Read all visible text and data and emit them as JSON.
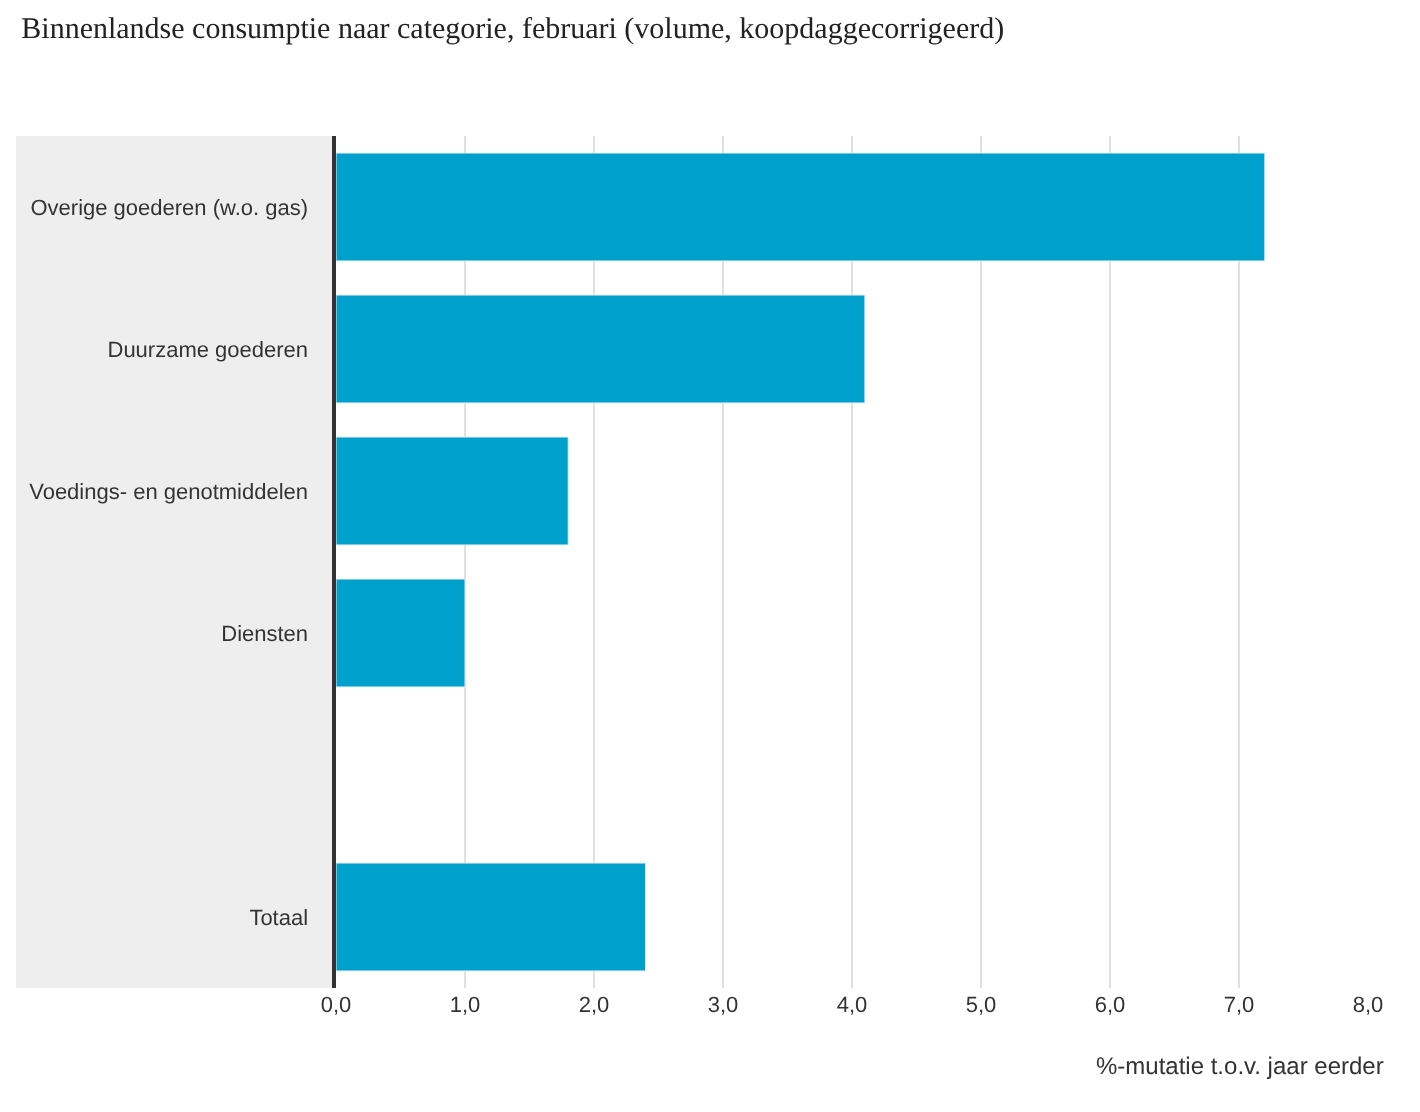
{
  "chart_data": {
    "type": "bar",
    "orientation": "horizontal",
    "title": "Binnenlandse consumptie naar categorie, februari (volume, koopdaggecorrigeerd)",
    "xlabel": "%-mutatie t.o.v. jaar eerder",
    "categories": [
      "Overige goederen (w.o. gas)",
      "Duurzame goederen",
      "Voedings- en genotmiddelen",
      "Diensten",
      null,
      "Totaal"
    ],
    "values": [
      7.2,
      4.1,
      1.8,
      1.0,
      null,
      2.4
    ],
    "color": "#00a0cc",
    "xlim": [
      0,
      8
    ],
    "xticks": [
      {
        "value": 0,
        "label": "0,0"
      },
      {
        "value": 1,
        "label": "1,0"
      },
      {
        "value": 2,
        "label": "2,0"
      },
      {
        "value": 3,
        "label": "3,0"
      },
      {
        "value": 4,
        "label": "4,0"
      },
      {
        "value": 5,
        "label": "5,0"
      },
      {
        "value": 6,
        "label": "6,0"
      },
      {
        "value": 7,
        "label": "7,0"
      },
      {
        "value": 8,
        "label": "8,0"
      }
    ],
    "grid": "x",
    "legend": false
  }
}
